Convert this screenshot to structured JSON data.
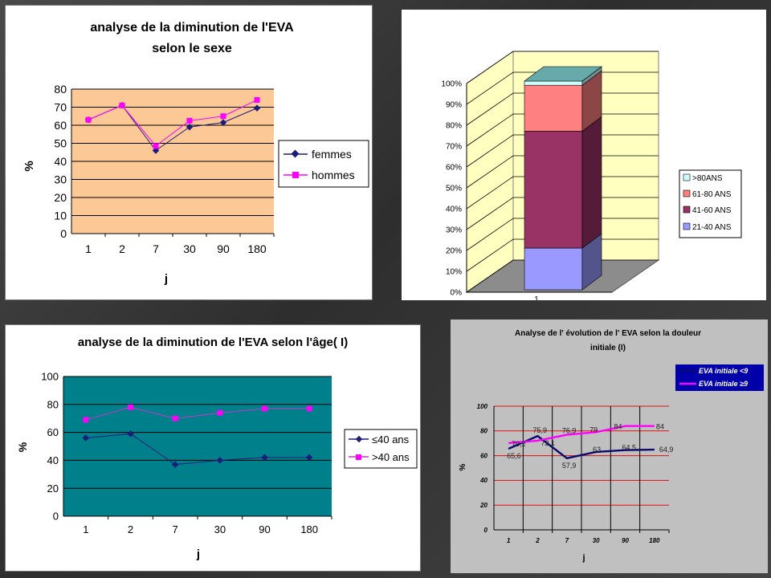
{
  "colors": {
    "slide_bg": "#3a3a3a",
    "chart1_plot_bg": "#fcc896",
    "chart3_plot_bg": "#00808a",
    "chart4_bg": "#c0c0c0",
    "chart4_grid": "#e01010"
  },
  "chart_data": [
    {
      "type": "line",
      "title": [
        "analyse de la diminution de l'EVA",
        "selon le sexe"
      ],
      "xlabel": "j",
      "ylabel": "%",
      "categories": [
        "1",
        "2",
        "7",
        "30",
        "90",
        "180"
      ],
      "ylim": [
        0,
        80
      ],
      "yticks": [
        "0",
        "10",
        "20",
        "30",
        "40",
        "50",
        "60",
        "70",
        "80"
      ],
      "grid": true,
      "legend": "right",
      "series": [
        {
          "name": "femmes",
          "values": [
            63,
            71,
            46,
            59,
            61.5,
            69.5
          ],
          "color": "#1c1c7a",
          "marker": "diamond"
        },
        {
          "name": "hommes",
          "values": [
            63,
            71,
            48.5,
            62.5,
            65,
            74
          ],
          "color": "#ff00ff",
          "marker": "square"
        }
      ]
    },
    {
      "type": "bar",
      "stacked": true,
      "percent": true,
      "categories": [
        "1"
      ],
      "ylim": [
        0,
        100
      ],
      "yticks": [
        "0%",
        "10%",
        "20%",
        "30%",
        "40%",
        "50%",
        "60%",
        "70%",
        "80%",
        "90%",
        "100%"
      ],
      "legend": "right",
      "series": [
        {
          "name": "21-40 ANS",
          "values": [
            20
          ],
          "color": "#9999ff"
        },
        {
          "name": "41-60 ANS",
          "values": [
            56
          ],
          "color": "#993366"
        },
        {
          "name": "61-80 ANS",
          "values": [
            22
          ],
          "color": "#ff8080"
        },
        {
          "name": ">80ANS",
          "values": [
            2
          ],
          "color": "#ccffff"
        }
      ]
    },
    {
      "type": "line",
      "title": "analyse de la diminution de l'EVA selon l'âge( I)",
      "xlabel": "j",
      "ylabel": "%",
      "categories": [
        "1",
        "2",
        "7",
        "30",
        "90",
        "180"
      ],
      "ylim": [
        0,
        100
      ],
      "yticks": [
        "0",
        "20",
        "40",
        "60",
        "80",
        "100"
      ],
      "grid": true,
      "legend": "right",
      "series": [
        {
          "name": "≤40 ans",
          "values": [
            56,
            59,
            37,
            40,
            42,
            42
          ],
          "color": "#1c1c7a",
          "marker": "diamond"
        },
        {
          "name": ">40 ans",
          "values": [
            69,
            78,
            70,
            74,
            77,
            77
          ],
          "color": "#cc33cc",
          "marker": "square"
        }
      ]
    },
    {
      "type": "line",
      "title": [
        "Analyse de l' évolution de l' EVA selon la douleur",
        "initiale (I)"
      ],
      "xlabel": "j",
      "ylabel": "%",
      "categories": [
        "1",
        "2",
        "7",
        "30",
        "90",
        "180"
      ],
      "ylim": [
        0,
        100
      ],
      "yticks": [
        "0",
        "20",
        "40",
        "60",
        "80",
        "100"
      ],
      "grid": true,
      "legend": "top-right",
      "series": [
        {
          "name": "EVA initiale <9",
          "values": [
            65.6,
            75.9,
            57.9,
            63,
            64.5,
            64.9
          ],
          "labels": [
            "65,6",
            "75,9",
            "57,9",
            "63",
            "64,5",
            "64,9"
          ],
          "color": "#0a0a6e"
        },
        {
          "name": "EVA initiale ≥9",
          "values": [
            70.2,
            72.1,
            76.9,
            79,
            84,
            84
          ],
          "labels": [
            "70,2",
            "72,1",
            "76,9",
            "79",
            "84",
            "84"
          ],
          "color": "#ff00ff"
        }
      ]
    }
  ]
}
